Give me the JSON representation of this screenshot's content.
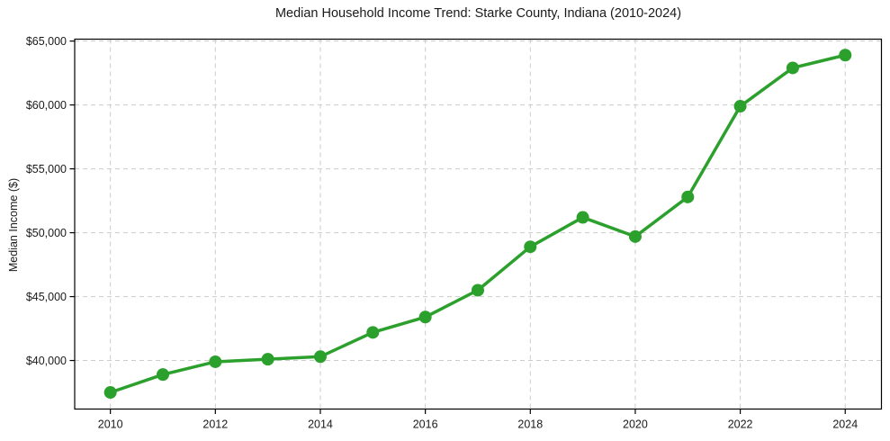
{
  "figure": {
    "title": "Median Household Income Trend: Starke County, Indiana (2010-2024)",
    "ylabel": "Median Income ($)"
  },
  "chart_data": {
    "type": "line",
    "title": "Median Household Income Trend: Starke County, Indiana (2010-2024)",
    "xlabel": "",
    "ylabel": "Median Income ($)",
    "x": [
      2010,
      2011,
      2012,
      2013,
      2014,
      2015,
      2016,
      2017,
      2018,
      2019,
      2020,
      2021,
      2022,
      2023,
      2024
    ],
    "values": [
      37500,
      38900,
      39900,
      40100,
      40300,
      42200,
      43400,
      45500,
      48900,
      51200,
      49700,
      52800,
      59900,
      62900,
      63900
    ],
    "xticks": [
      2010,
      2012,
      2014,
      2016,
      2018,
      2020,
      2022,
      2024
    ],
    "xtick_labels": [
      "2010",
      "2012",
      "2014",
      "2016",
      "2018",
      "2020",
      "2022",
      "2024"
    ],
    "yticks": [
      40000,
      45000,
      50000,
      55000,
      60000,
      65000
    ],
    "ytick_labels": [
      "$40,000",
      "$45,000",
      "$50,000",
      "$55,000",
      "$60,000",
      "$65,000"
    ],
    "xlim": [
      2009.32,
      2024.69
    ],
    "ylim": [
      36200,
      65150
    ],
    "grid": true,
    "grid_style": "dashed",
    "legend": false,
    "line_color": "#2ca02c",
    "marker_color": "#2ca02c",
    "grid_color": "#cccccc",
    "axis_color": "#000000",
    "text_color": "#1a1a1a"
  }
}
